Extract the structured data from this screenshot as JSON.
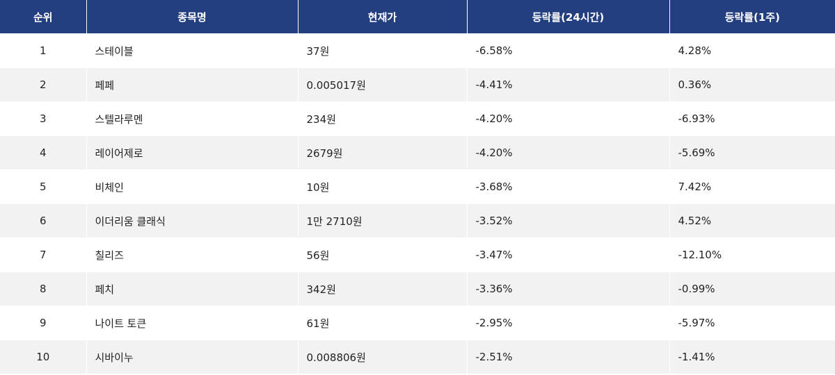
{
  "table": {
    "header": [
      "순위",
      "종목명",
      "현재가",
      "등락률(24시간)",
      "등락률(1주)"
    ],
    "rows": [
      [
        "1",
        "스테이블",
        "37원",
        "-6.58%",
        "4.28%"
      ],
      [
        "2",
        "페페",
        "0.005017원",
        "-4.41%",
        "0.36%"
      ],
      [
        "3",
        "스텔라루멘",
        "234원",
        "-4.20%",
        "-6.93%"
      ],
      [
        "4",
        "레이어제로",
        "2679원",
        "-4.20%",
        "-5.69%"
      ],
      [
        "5",
        "비체인",
        "10원",
        "-3.68%",
        "7.42%"
      ],
      [
        "6",
        "이더리움 클래식",
        "1만 2710원",
        "-3.52%",
        "4.52%"
      ],
      [
        "7",
        "칠리즈",
        "56원",
        "-3.47%",
        "-12.10%"
      ],
      [
        "8",
        "페치",
        "342원",
        "-3.36%",
        "-0.99%"
      ],
      [
        "9",
        "나이트 토큰",
        "61원",
        "-2.95%",
        "-5.97%"
      ],
      [
        "10",
        "시바이누",
        "0.008806원",
        "-2.51%",
        "-1.41%"
      ]
    ]
  }
}
